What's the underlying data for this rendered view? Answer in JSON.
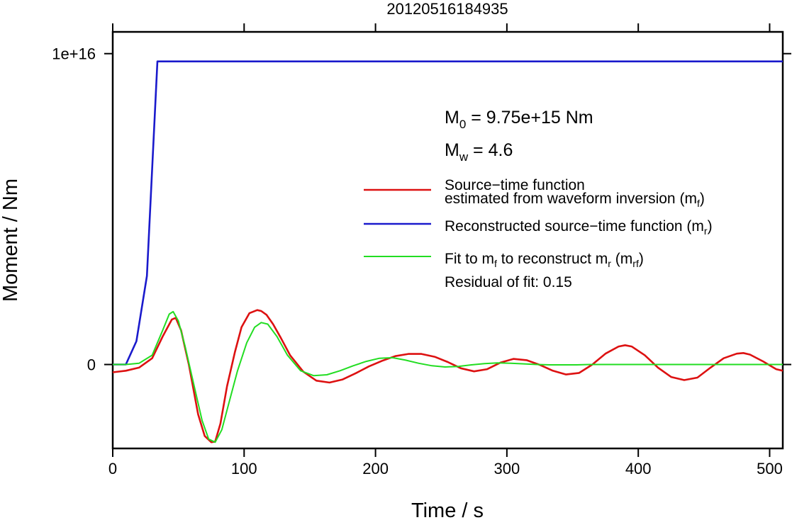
{
  "chart_data": {
    "type": "line",
    "title": "20120516184935",
    "xlabel": "Time / s",
    "ylabel": "Moment / Nm",
    "xlim": [
      0,
      510
    ],
    "ylim": [
      -2700000000000000.0,
      1.07e+16
    ],
    "x_ticks": [
      0,
      100,
      200,
      300,
      400,
      500
    ],
    "y_ticks": [
      0,
      1e+16
    ],
    "y_tick_labels": [
      "0",
      "1e+16"
    ],
    "legend_position": "right",
    "annotations": {
      "m0_prefix": "M",
      "m0_sub": "0",
      "m0_value": " = 9.75e+15 Nm",
      "mw_prefix": "M",
      "mw_sub": "w",
      "mw_value": " = 4.6",
      "residual": "Residual of fit: 0.15"
    },
    "series": [
      {
        "name": "Source−time function estimated from waveform inversion (mₑ)",
        "legend_line1": "Source−time function",
        "legend_line2": "estimated from waveform inversion (m",
        "legend_sub": "f",
        "legend_tail": ")",
        "color": "#dd1111",
        "x": [
          0,
          10,
          20,
          30,
          38,
          45,
          48,
          52,
          58,
          65,
          70,
          75,
          78,
          82,
          87,
          93,
          98,
          104,
          110,
          113,
          117,
          122,
          128,
          135,
          145,
          155,
          165,
          175,
          185,
          195,
          205,
          215,
          225,
          235,
          245,
          255,
          265,
          275,
          285,
          295,
          305,
          315,
          325,
          335,
          345,
          355,
          365,
          375,
          385,
          390,
          395,
          405,
          415,
          425,
          435,
          445,
          455,
          465,
          475,
          480,
          485,
          495,
          505,
          510
        ],
        "y": [
          -250000000000000.0,
          -200000000000000.0,
          -100000000000000.0,
          200000000000000.0,
          900000000000000.0,
          1450000000000000.0,
          1500000000000000.0,
          1100000000000000.0,
          -20000000000000.0,
          -1600000000000000.0,
          -2300000000000000.0,
          -2500000000000000.0,
          -2480000000000000.0,
          -1900000000000000.0,
          -700000000000000.0,
          400000000000000.0,
          1200000000000000.0,
          1650000000000000.0,
          1750000000000000.0,
          1720000000000000.0,
          1600000000000000.0,
          1300000000000000.0,
          850000000000000.0,
          300000000000000.0,
          -230000000000000.0,
          -520000000000000.0,
          -580000000000000.0,
          -480000000000000.0,
          -280000000000000.0,
          -60000000000000.0,
          120000000000000.0,
          270000000000000.0,
          340000000000000.0,
          340000000000000.0,
          250000000000000.0,
          80000000000000.0,
          -120000000000000.0,
          -220000000000000.0,
          -150000000000000.0,
          60000000000000.0,
          180000000000000.0,
          140000000000000.0,
          -10000000000000.0,
          -200000000000000.0,
          -320000000000000.0,
          -270000000000000.0,
          -1000000000000.0,
          350000000000000.0,
          580000000000000.0,
          620000000000000.0,
          580000000000000.0,
          300000000000000.0,
          -100000000000000.0,
          -400000000000000.0,
          -500000000000000.0,
          -420000000000000.0,
          -100000000000000.0,
          200000000000000.0,
          350000000000000.0,
          370000000000000.0,
          320000000000000.0,
          100000000000000.0,
          -150000000000000.0,
          -200000000000000.0
        ]
      },
      {
        "name": "Reconstructed source−time function (mᵣ)",
        "legend_line1": "Reconstructed source−time function (m",
        "legend_sub": "r",
        "legend_tail": ")",
        "color": "#1a1acc",
        "x": [
          0,
          10,
          18,
          26,
          34,
          40,
          510
        ],
        "y": [
          0,
          0,
          750000000000000.0,
          2850000000000000.0,
          9750000000000000.0,
          9750000000000000.0,
          9750000000000000.0
        ]
      },
      {
        "name": "Fit to mₑ to reconstruct mᵣ (mᵣₑ)",
        "legend_a": "Fit to m",
        "legend_a_sub": "f",
        "legend_b": " to reconstruct m",
        "legend_b_sub": "r",
        "legend_c": " (m",
        "legend_c_sub": "rf",
        "legend_d": ")",
        "color": "#22dd22",
        "x": [
          0,
          10,
          20,
          30,
          38,
          43,
          46,
          50,
          55,
          62,
          68,
          73,
          78,
          83,
          88,
          95,
          102,
          108,
          113,
          118,
          125,
          133,
          143,
          153,
          163,
          173,
          183,
          193,
          203,
          213,
          223,
          233,
          243,
          253,
          263,
          273,
          283,
          293,
          303,
          313,
          323,
          333,
          343,
          353,
          363,
          373,
          383,
          393,
          403,
          413,
          423,
          433,
          443,
          453,
          463,
          473,
          483,
          493,
          503,
          510
        ],
        "y": [
          0,
          0,
          40000000000000.0,
          300000000000000.0,
          1100000000000000.0,
          1620000000000000.0,
          1700000000000000.0,
          1400000000000000.0,
          600000000000000.0,
          -700000000000000.0,
          -1800000000000000.0,
          -2400000000000000.0,
          -2500000000000000.0,
          -2100000000000000.0,
          -1300000000000000.0,
          -200000000000000.0,
          700000000000000.0,
          1200000000000000.0,
          1350000000000000.0,
          1300000000000000.0,
          900000000000000.0,
          300000000000000.0,
          -200000000000000.0,
          -360000000000000.0,
          -330000000000000.0,
          -200000000000000.0,
          -40000000000000.0,
          100000000000000.0,
          200000000000000.0,
          220000000000000.0,
          140000000000000.0,
          40000000000000.0,
          -40000000000000.0,
          -80000000000000.0,
          -60000000000000.0,
          -10000000000000.0,
          30000000000000.0,
          50000000000000.0,
          40000000000000.0,
          20000000000000.0,
          0,
          -10000000000000.0,
          -10000000000000.0,
          -10000000000000.0,
          0,
          0,
          0,
          0,
          0,
          0,
          0,
          0,
          0,
          0,
          0,
          0,
          0,
          0,
          0,
          0
        ]
      }
    ]
  }
}
